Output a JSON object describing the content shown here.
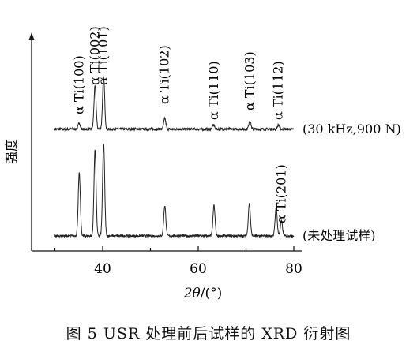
{
  "chart_data": {
    "type": "line",
    "ylabel": "强度",
    "xlabel_main": "2θ",
    "xlabel_unit": "/(°)",
    "xlim": [
      30,
      80
    ],
    "xticks": [
      40,
      60,
      80
    ],
    "grid": false,
    "series": [
      {
        "name": "(30 kHz,900 N)",
        "baseline": 0.565,
        "noise": 0.006,
        "peaks": [
          {
            "x": 35.1,
            "h": 0.03
          },
          {
            "x": 38.4,
            "h": 0.2
          },
          {
            "x": 40.2,
            "h": 0.24
          },
          {
            "x": 53.0,
            "h": 0.05
          },
          {
            "x": 63.2,
            "h": 0.02
          },
          {
            "x": 70.8,
            "h": 0.04
          },
          {
            "x": 76.8,
            "h": 0.02
          }
        ]
      },
      {
        "name": "(未处理试样)",
        "baseline": 0.07,
        "noise": 0.005,
        "peaks": [
          {
            "x": 35.1,
            "h": 0.29
          },
          {
            "x": 38.4,
            "h": 0.4
          },
          {
            "x": 40.2,
            "h": 0.43
          },
          {
            "x": 53.0,
            "h": 0.14
          },
          {
            "x": 63.3,
            "h": 0.14
          },
          {
            "x": 70.7,
            "h": 0.15
          },
          {
            "x": 76.3,
            "h": 0.13
          },
          {
            "x": 77.4,
            "h": 0.07
          }
        ]
      }
    ],
    "annotations": [
      {
        "text": "α Ti(100)",
        "x": 35.1
      },
      {
        "text": "α Ti(002)",
        "x": 38.4
      },
      {
        "text": "α Ti(101)",
        "x": 40.2
      },
      {
        "text": "α Ti(102)",
        "x": 53.0
      },
      {
        "text": "α Ti(110)",
        "x": 63.3
      },
      {
        "text": "α Ti(103)",
        "x": 70.8
      },
      {
        "text": "α Ti(112)",
        "x": 76.8
      },
      {
        "text": "α Ti(201)",
        "x": 77.4
      }
    ]
  },
  "caption": "图 5   USR 处理前后试样的 XRD 衍射图"
}
